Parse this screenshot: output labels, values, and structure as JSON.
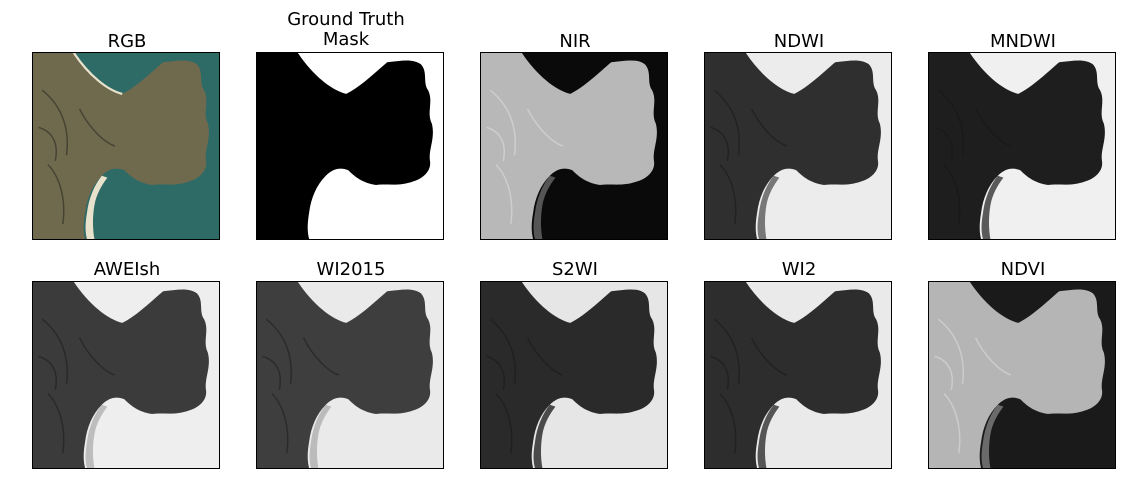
{
  "panels": [
    {
      "title": "RGB",
      "style": "rgb"
    },
    {
      "title": "Ground Truth\nMask",
      "style": "mask"
    },
    {
      "title": "NIR",
      "style": "nir"
    },
    {
      "title": "NDWI",
      "style": "ndwi"
    },
    {
      "title": "MNDWI",
      "style": "mndwi"
    },
    {
      "title": "AWEIsh",
      "style": "aweish"
    },
    {
      "title": "WI2015",
      "style": "wi2015"
    },
    {
      "title": "S2WI",
      "style": "s2wi"
    },
    {
      "title": "WI2",
      "style": "wi2"
    },
    {
      "title": "NDVI",
      "style": "ndvi"
    }
  ],
  "palettes": {
    "rgb": {
      "land": "#6f6a4e",
      "water": "#2e6a66",
      "beach": "#e8e2cc"
    },
    "mask": {
      "land": "#000000",
      "water": "#ffffff",
      "beach": "#ffffff"
    },
    "nir": {
      "land": "#b8b8b8",
      "water": "#0a0a0a",
      "beach": "#555555"
    },
    "ndwi": {
      "land": "#2f2f2f",
      "water": "#ececec",
      "beach": "#777777"
    },
    "mndwi": {
      "land": "#1e1e1e",
      "water": "#f0f0f0",
      "beach": "#5a5a5a"
    },
    "aweish": {
      "land": "#3b3b3b",
      "water": "#eeeeee",
      "beach": "#bdbdbd"
    },
    "wi2015": {
      "land": "#3e3e3e",
      "water": "#eaeaea",
      "beach": "#bbbbbb"
    },
    "s2wi": {
      "land": "#2a2a2a",
      "water": "#e6e6e6",
      "beach": "#4a4a4a"
    },
    "wi2": {
      "land": "#2d2d2d",
      "water": "#eaeaea",
      "beach": "#555555"
    },
    "ndvi": {
      "land": "#b5b5b5",
      "water": "#1a1a1a",
      "beach": "#6a6a6a"
    }
  }
}
